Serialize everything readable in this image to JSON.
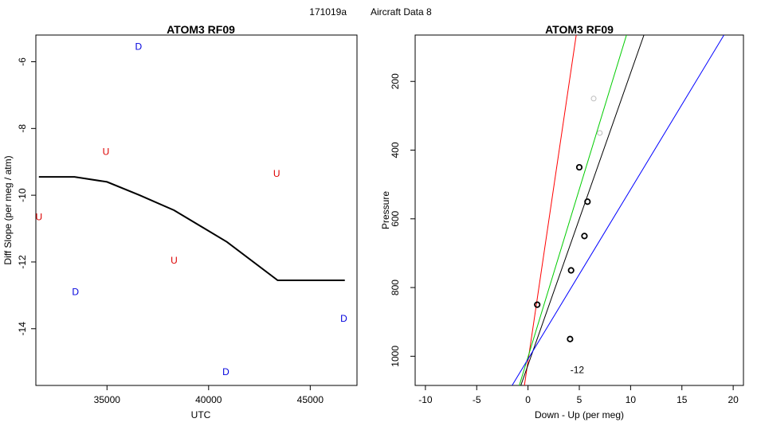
{
  "figure": {
    "title_left": "171019a",
    "title_right": "Aircraft Data 8"
  },
  "chart_data": [
    {
      "type": "scatter",
      "title": "ATOM3 RF09",
      "xlabel": "UTC",
      "ylabel": "Diff Slope (per meg / atm)",
      "xlim": [
        31500,
        47300
      ],
      "ylim": [
        -15.7,
        -5.2
      ],
      "xticks": [
        35000,
        40000,
        45000
      ],
      "yticks": [
        -6,
        -8,
        -10,
        -12,
        -14
      ],
      "grid": false,
      "line": {
        "color": "#000000",
        "x": [
          31650,
          33400,
          35000,
          36600,
          38300,
          40900,
          43400,
          46700
        ],
        "y": [
          -9.45,
          -9.45,
          -9.6,
          -10.0,
          -10.45,
          -11.4,
          -12.55,
          -12.55
        ]
      },
      "markers": [
        {
          "label": "U",
          "color": "#dd0000",
          "x": 31650,
          "y": -10.65
        },
        {
          "label": "D",
          "color": "#0000dd",
          "x": 33450,
          "y": -12.9
        },
        {
          "label": "U",
          "color": "#dd0000",
          "x": 34950,
          "y": -8.7
        },
        {
          "label": "D",
          "color": "#0000dd",
          "x": 36550,
          "y": -5.55
        },
        {
          "label": "U",
          "color": "#dd0000",
          "x": 38300,
          "y": -11.95
        },
        {
          "label": "D",
          "color": "#0000dd",
          "x": 40850,
          "y": -15.3
        },
        {
          "label": "U",
          "color": "#dd0000",
          "x": 43350,
          "y": -9.35
        },
        {
          "label": "D",
          "color": "#0000dd",
          "x": 46650,
          "y": -13.7
        }
      ]
    },
    {
      "type": "scatter",
      "title": "ATOM3 RF09",
      "xlabel": "Down - Up (per meg)",
      "ylabel": "Pressure",
      "xlim": [
        -11,
        21
      ],
      "ylim": [
        1085,
        65
      ],
      "y_reversed": true,
      "xticks": [
        -10,
        -5,
        0,
        5,
        10,
        15,
        20
      ],
      "yticks": [
        200,
        400,
        600,
        800,
        1000
      ],
      "grid": false,
      "annotation": {
        "text": "-12",
        "x": 4.8,
        "y": 1040
      },
      "points": [
        {
          "x": 5.0,
          "y": 450,
          "style": "open-black"
        },
        {
          "x": 5.8,
          "y": 550,
          "style": "open-black"
        },
        {
          "x": 5.5,
          "y": 650,
          "style": "open-black"
        },
        {
          "x": 4.2,
          "y": 750,
          "style": "open-black"
        },
        {
          "x": 0.9,
          "y": 850,
          "style": "open-black"
        },
        {
          "x": 4.1,
          "y": 950,
          "style": "open-black"
        },
        {
          "x": 6.4,
          "y": 250,
          "style": "open-gray"
        },
        {
          "x": 7.0,
          "y": 350,
          "style": "open-gray"
        }
      ],
      "lines": [
        {
          "color": "#ff0000",
          "x1": -0.35,
          "y1": 1085,
          "x2": 4.7,
          "y2": 65
        },
        {
          "color": "#00cc00",
          "x1": -0.85,
          "y1": 1085,
          "x2": 9.6,
          "y2": 65
        },
        {
          "color": "#000000",
          "x1": -0.7,
          "y1": 1085,
          "x2": 11.3,
          "y2": 65
        },
        {
          "color": "#0000ff",
          "x1": -1.55,
          "y1": 1085,
          "x2": 19.1,
          "y2": 65
        }
      ]
    }
  ]
}
